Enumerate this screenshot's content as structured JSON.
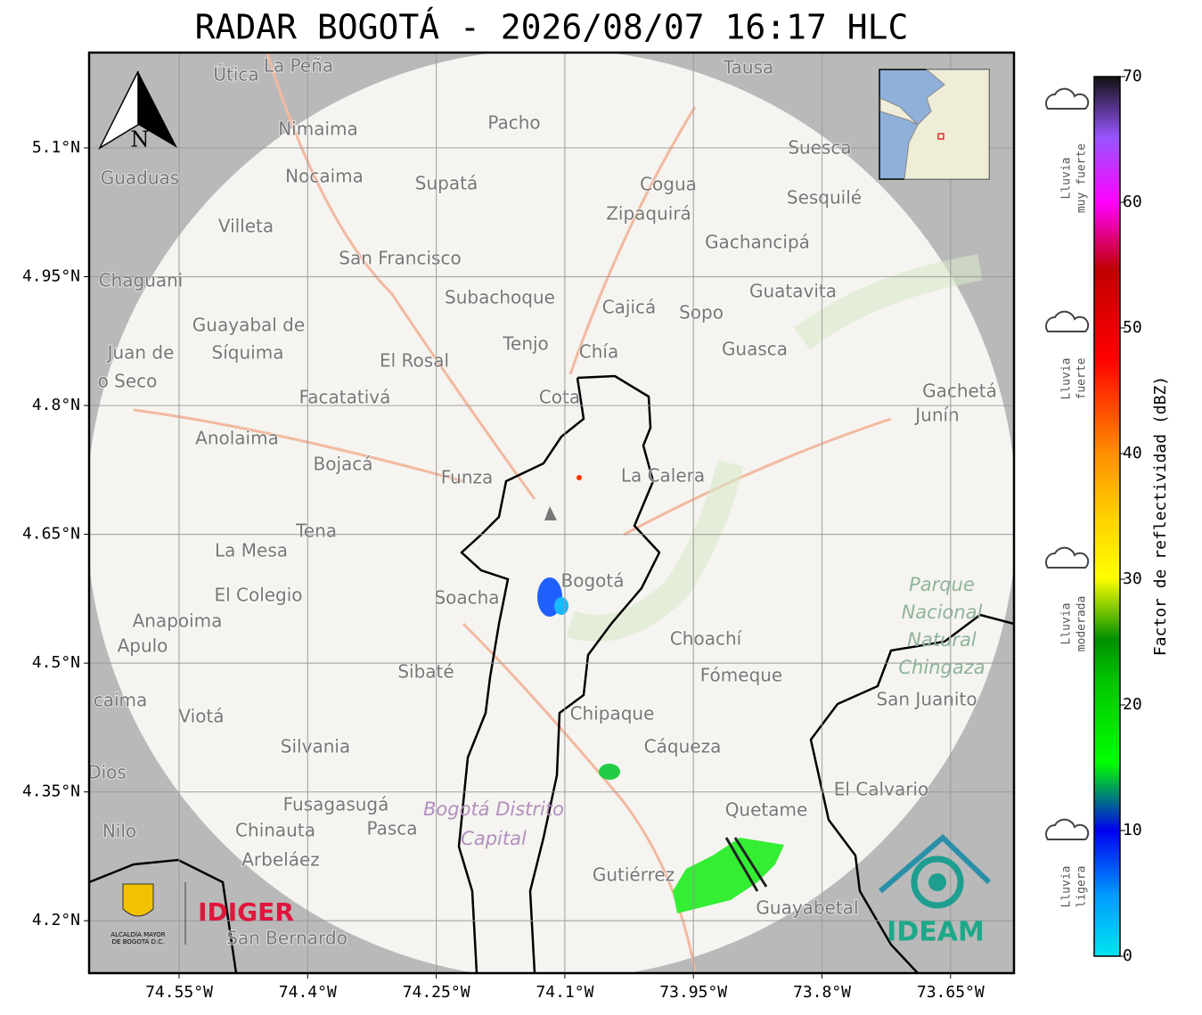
{
  "title": "RADAR BOGOTÁ - 2026/08/07 16:17 HLC",
  "map": {
    "xlim": [
      -74.655,
      -73.576
    ],
    "ylim": [
      4.139,
      5.211
    ],
    "grid": true,
    "xticks": [
      {
        "value": -74.55,
        "label": "74.55°W"
      },
      {
        "value": -74.4,
        "label": "74.4°W"
      },
      {
        "value": -74.25,
        "label": "74.25°W"
      },
      {
        "value": -74.1,
        "label": "74.1°W"
      },
      {
        "value": -73.95,
        "label": "73.95°W"
      },
      {
        "value": -73.8,
        "label": "73.8°W"
      },
      {
        "value": -73.65,
        "label": "73.65°W"
      }
    ],
    "yticks": [
      {
        "value": 5.1,
        "label": "5.1°N"
      },
      {
        "value": 4.95,
        "label": "4.95°N"
      },
      {
        "value": 4.8,
        "label": "4.8°N"
      },
      {
        "value": 4.65,
        "label": "4.65°N"
      },
      {
        "value": 4.5,
        "label": "4.5°N"
      },
      {
        "value": 4.35,
        "label": "4.35°N"
      },
      {
        "value": 4.2,
        "label": "4.2°N"
      }
    ],
    "north_label": "N",
    "places": [
      "Útica",
      "La Peña",
      "Tausa",
      "Nimaima",
      "Pacho",
      "Guaduas",
      "Nocaima",
      "Supatá",
      "Cogua",
      "Suesca",
      "Sesquilé",
      "Villeta",
      "Zipaquirá",
      "Gachancipá",
      "San Francisco",
      "Chaguani",
      "Subachoque",
      "Guatavita",
      "Cajicá",
      "Sopo",
      "Guayabal de",
      "Síquima",
      "Juan de",
      "o Seco",
      "Tenjo",
      "Chía",
      "El Rosal",
      "Guasca",
      "Facatativá",
      "Cota",
      "Gachetá",
      "Junín",
      "Anolaima",
      "Bojacá",
      "Funza",
      "La Calera",
      "Tena",
      "La Mesa",
      "Bogotá",
      "Soacha",
      "El Colegio",
      "Anapoima",
      "Apulo",
      "Choachí",
      "Sibaté",
      "Fómeque",
      "caima",
      "San Juanito",
      "Viotá",
      "Chipaque",
      "Silvania",
      "Cáqueza",
      "Dios",
      "El Calvario",
      "Fusagasugá",
      "Quetame",
      "Nilo",
      "Chinauta",
      "Pasca",
      "Arbeláez",
      "Gutiérrez",
      "Guayabetal",
      "San Bernardo"
    ],
    "park_label": [
      "Parque",
      "Nacional",
      "Natural",
      "Chingaza"
    ],
    "district_label": [
      "Bogotá Distrito",
      "Capital"
    ]
  },
  "colorbar": {
    "label": "Factor de reflectividad (dBZ)",
    "lim": [
      0,
      70
    ],
    "ticks": [
      0,
      10,
      20,
      30,
      40,
      50,
      60,
      70
    ]
  },
  "intensity_legend": [
    [
      "Lluvia",
      "muy fuerte"
    ],
    [
      "Lluvia",
      "fuerte"
    ],
    [
      "Lluvia",
      "moderada"
    ],
    [
      "Lluvia",
      "ligera"
    ]
  ],
  "logos": {
    "alcaldia": [
      "ALCALDÍA MAYOR",
      "DE BOGOTÁ D.C."
    ],
    "idiger": "IDIGER",
    "ideam": "IDEAM"
  }
}
